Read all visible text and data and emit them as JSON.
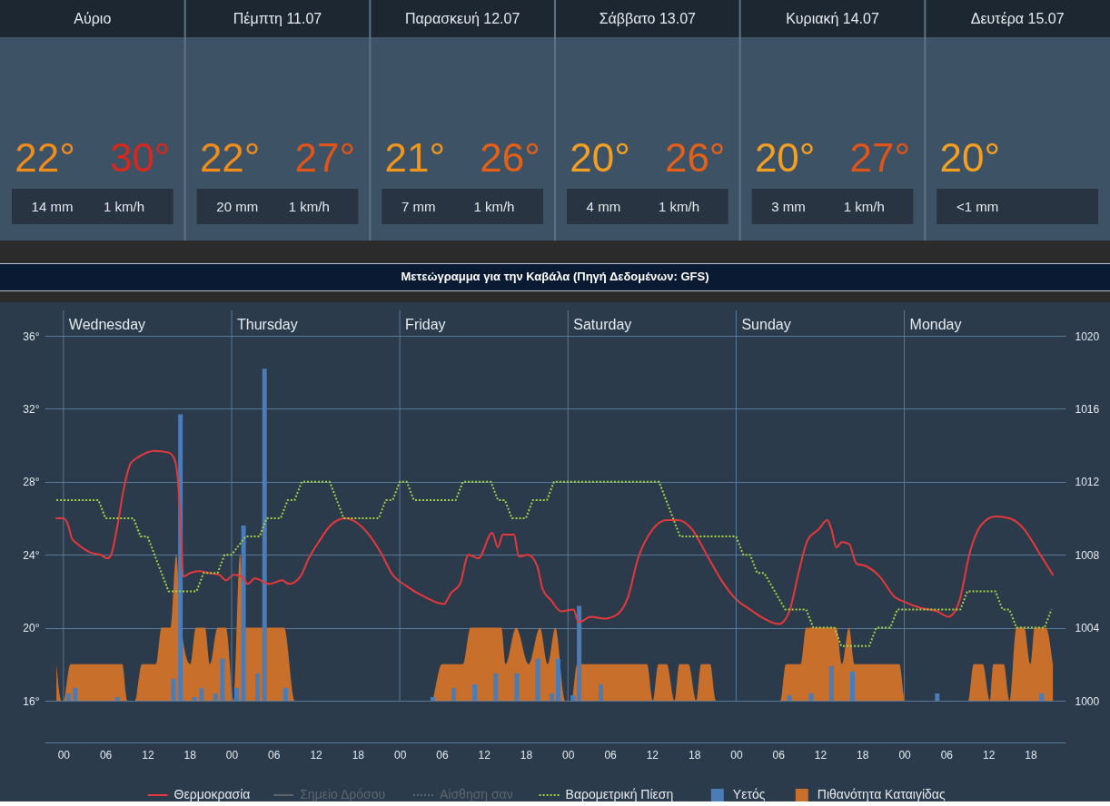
{
  "chart_data": [
    {
      "type": "other",
      "categories": [
        "Αύριο",
        "Πέμπτη 11.07",
        "Παρασκευή 12.07",
        "Σάββατο 13.07",
        "Κυριακή 14.07",
        "Δευτέρα 15.07"
      ],
      "series": [
        {
          "values": [
            22,
            22,
            21,
            20,
            20,
            20
          ],
          "value_labels": [
            "22°",
            "22°",
            "21°",
            "20°",
            "20°",
            "20°"
          ]
        },
        {
          "values": [
            30,
            27,
            26,
            26,
            27,
            null
          ],
          "value_labels": [
            "30°",
            "27°",
            "26°",
            "26°",
            "27°",
            null
          ]
        },
        {
          "values": [
            14,
            20,
            7,
            4,
            3,
            null
          ],
          "value_labels": [
            "14 mm",
            "20 mm",
            "7 mm",
            "4 mm",
            "3 mm",
            "<1 mm"
          ]
        },
        {
          "values": [
            1,
            1,
            1,
            1,
            1,
            null
          ],
          "value_labels": [
            "1 km/h",
            "1 km/h",
            "1 km/h",
            "1 km/h",
            "1 km/h",
            null
          ]
        }
      ]
    },
    {
      "type": "line",
      "title": "Μετεώγραμμα για την Καβάλα (Πηγή Δεδομένων: GFS)",
      "xlim": [
        -2.7,
        143
      ],
      "xticks": [
        {
          "value": 0,
          "label": "00"
        },
        {
          "value": 6,
          "label": "06"
        },
        {
          "value": 12,
          "label": "12"
        },
        {
          "value": 18,
          "label": "18"
        },
        {
          "value": 24,
          "label": "00"
        },
        {
          "value": 30,
          "label": "06"
        },
        {
          "value": 36,
          "label": "12"
        },
        {
          "value": 42,
          "label": "18"
        },
        {
          "value": 48,
          "label": "00"
        },
        {
          "value": 54,
          "label": "06"
        },
        {
          "value": 60,
          "label": "12"
        },
        {
          "value": 66,
          "label": "18"
        },
        {
          "value": 72,
          "label": "00"
        },
        {
          "value": 78,
          "label": "06"
        },
        {
          "value": 84,
          "label": "12"
        },
        {
          "value": 90,
          "label": "18"
        },
        {
          "value": 96,
          "label": "00"
        },
        {
          "value": 102,
          "label": "06"
        },
        {
          "value": 108,
          "label": "12"
        },
        {
          "value": 114,
          "label": "18"
        },
        {
          "value": 120,
          "label": "00"
        },
        {
          "value": 126,
          "label": "06"
        },
        {
          "value": 132,
          "label": "12"
        },
        {
          "value": 138,
          "label": "18"
        }
      ],
      "ylim": [
        16,
        36
      ],
      "yticks": [
        {
          "value": 16,
          "label": "16°"
        },
        {
          "value": 20,
          "label": "20°"
        },
        {
          "value": 24,
          "label": "24°"
        },
        {
          "value": 28,
          "label": "28°"
        },
        {
          "value": 32,
          "label": "32°"
        },
        {
          "value": 36,
          "label": "36°"
        }
      ],
      "y2lim": [
        1000,
        1020
      ],
      "y2ticks": [
        1000,
        1004,
        1008,
        1012,
        1016,
        1020
      ],
      "grid": "y",
      "legend": "bottom",
      "ref_lines": [
        {
          "axis": "x",
          "value": 0,
          "label": "Wednesday"
        },
        {
          "axis": "x",
          "value": 24,
          "label": "Thursday"
        },
        {
          "axis": "x",
          "value": 48,
          "label": "Friday"
        },
        {
          "axis": "x",
          "value": 72,
          "label": "Saturday"
        },
        {
          "axis": "x",
          "value": 96,
          "label": "Sunday"
        },
        {
          "axis": "x",
          "value": 120,
          "label": "Monday"
        }
      ],
      "series": [
        {
          "name": "Θερμοκρασία",
          "type": "line",
          "color": "#e5383b",
          "x": [
            -1,
            0,
            0.7,
            1.2,
            2,
            3,
            4,
            5.3,
            6.3,
            6.8,
            7.8,
            8.6,
            9.6,
            10.9,
            13,
            15,
            15.8,
            16.3,
            16.7,
            17.1,
            18.1,
            19.4,
            20.7,
            22.2,
            23.2,
            24.3,
            25.5,
            26.3,
            27.3,
            29.4,
            31.2,
            32.2,
            33.8,
            35,
            36.6,
            38.1,
            40.2,
            41.7,
            43.8,
            45.6,
            46.8,
            48.9,
            51.5,
            54.3,
            55.3,
            56.6,
            57.8,
            59.2,
            61.2,
            62,
            62.7,
            64.3,
            65,
            66.3,
            67.6,
            68.4,
            69.6,
            71,
            72.8,
            73.5,
            75.3,
            77.1,
            78.9,
            80.5,
            82,
            84.1,
            86.1,
            87.7,
            89.7,
            91.8,
            93.9,
            95.9,
            98,
            100,
            102.1,
            103.6,
            104.9,
            106.2,
            107.8,
            109,
            109.6,
            110.3,
            111.1,
            112.1,
            113.2,
            114.4,
            116.5,
            118.6,
            120.1,
            122.2,
            124.7,
            126.3,
            127.8,
            129.4,
            130.9,
            133,
            135,
            137.1,
            139.1,
            141.2
          ],
          "values": [
            26.0,
            26.0,
            25.6,
            24.9,
            24.6,
            24.3,
            24.1,
            24.0,
            23.8,
            24.0,
            25.8,
            27.6,
            29.0,
            29.4,
            29.7,
            29.6,
            29.3,
            28.2,
            25.8,
            22.8,
            23.0,
            23.1,
            23.0,
            22.9,
            22.6,
            22.9,
            22.8,
            22.4,
            22.7,
            22.4,
            22.6,
            22.4,
            22.8,
            23.8,
            24.8,
            25.6,
            26.0,
            25.8,
            25.0,
            23.9,
            23.0,
            22.3,
            21.7,
            21.3,
            21.9,
            22.4,
            24.0,
            23.8,
            25.2,
            24.4,
            25.1,
            25.1,
            23.9,
            24.0,
            23.4,
            22.1,
            21.5,
            20.9,
            21.0,
            20.3,
            20.6,
            20.5,
            20.7,
            21.6,
            23.8,
            25.4,
            25.9,
            25.9,
            25.4,
            24.0,
            22.6,
            21.6,
            21.0,
            20.5,
            20.2,
            20.9,
            23.0,
            24.8,
            25.4,
            25.9,
            25.4,
            24.4,
            24.7,
            24.6,
            23.5,
            23.4,
            22.8,
            21.7,
            21.4,
            21.1,
            20.9,
            20.6,
            21.4,
            24.2,
            25.6,
            26.1,
            26.0,
            25.4,
            24.2,
            22.9
          ]
        },
        {
          "name": "Σημείο Δρόσου",
          "type": "line",
          "color": "#59636e"
        },
        {
          "name": "Αίσθηση σαν",
          "type": "line",
          "color": "#59636e",
          "line_style": "dotted"
        },
        {
          "name": "Βαρομετρική Πίεση",
          "type": "line",
          "axis": "y2",
          "color": "#a3d147",
          "line_style": "dotted",
          "x": [
            -1,
            5,
            6,
            10,
            11,
            12,
            15,
            19,
            20,
            22,
            23,
            24,
            26,
            28,
            29,
            31,
            32,
            33,
            34,
            38,
            40,
            45,
            46,
            47,
            48,
            49,
            50,
            56,
            57,
            61,
            62,
            63,
            64,
            66,
            67,
            69,
            70,
            85,
            88,
            96,
            97,
            98,
            99,
            100,
            103,
            106,
            107,
            110,
            111,
            115,
            116,
            118,
            119,
            128,
            129,
            133,
            134,
            135,
            136,
            140,
            141
          ],
          "values": [
            1011,
            1011,
            1010,
            1010,
            1009,
            1009,
            1006,
            1006,
            1007,
            1007,
            1008,
            1008,
            1009,
            1009,
            1010,
            1010,
            1011,
            1011,
            1012,
            1012,
            1010,
            1010,
            1011,
            1011,
            1012,
            1012,
            1011,
            1011,
            1012,
            1012,
            1011,
            1011,
            1010,
            1010,
            1011,
            1011,
            1012,
            1012,
            1009,
            1009,
            1008,
            1008,
            1007,
            1007,
            1005,
            1005,
            1004,
            1004,
            1003,
            1003,
            1004,
            1004,
            1005,
            1005,
            1006,
            1006,
            1005,
            1005,
            1004,
            1004,
            1005
          ]
        },
        {
          "name": "Υετός",
          "type": "bar",
          "color": "#4a7cb8",
          "x": [
            0.7,
            1.7,
            7.7,
            15.7,
            16.7,
            18.7,
            19.7,
            21.7,
            22.7,
            24.7,
            25.7,
            27.7,
            28.7,
            31.7,
            52.7,
            55.7,
            58.7,
            61.7,
            64.7,
            67.7,
            69.7,
            70.6,
            72.7,
            73.6,
            76.7,
            103.6,
            106.7,
            109.6,
            112.6,
            124.7,
            139.6
          ],
          "values": [
            16.4,
            16.7,
            16.2,
            17.2,
            31.7,
            16.2,
            16.7,
            16.4,
            18.3,
            16.7,
            25.6,
            17.5,
            34.2,
            16.7,
            16.2,
            16.7,
            16.9,
            17.5,
            17.5,
            18.3,
            16.4,
            18.3,
            16.3,
            21.2,
            16.9,
            16.3,
            16.4,
            17.9,
            17.6,
            16.4,
            16.4
          ]
        },
        {
          "name": "Πιθανότητα Καταιγίδας",
          "type": "area",
          "color": "#c96f2c",
          "x": [
            -1,
            -0.3,
            0,
            1,
            8.4,
            9.1,
            10.2,
            11.2,
            13.2,
            14,
            15.3,
            16.1,
            16.8,
            18.1,
            18.9,
            20.2,
            20.9,
            22,
            23.2,
            24.3,
            25.2,
            25.8,
            31.5,
            33,
            52.5,
            54,
            57,
            58.1,
            62.5,
            63.1,
            64.6,
            66.4,
            68,
            69.1,
            70.2,
            71.6,
            72.5,
            73.3,
            83.3,
            84.1,
            84.9,
            86.1,
            87.2,
            87.9,
            89.2,
            90.3,
            91,
            92.3,
            93.1,
            102.3,
            103.1,
            105.2,
            106,
            110.3,
            111.1,
            112.1,
            112.9,
            119.3,
            120.1,
            129.1,
            129.9,
            131.2,
            132.2,
            132.7,
            134.2,
            135,
            136,
            137.1,
            138,
            138.6,
            140.2,
            141.2
          ],
          "values": [
            18,
            16,
            16,
            18,
            18,
            16,
            16,
            18,
            18,
            20,
            20,
            24,
            20,
            18,
            20,
            20,
            18,
            20,
            20,
            16,
            24,
            20,
            20,
            16,
            16,
            18,
            18,
            20,
            20,
            18,
            20,
            18,
            20,
            18,
            20,
            16,
            16,
            18,
            18,
            16,
            18,
            18,
            16,
            18,
            18,
            16,
            18,
            18,
            16,
            16,
            18,
            18,
            20,
            20,
            18,
            20,
            18,
            18,
            16,
            16,
            18,
            18,
            16,
            18,
            18,
            16,
            20,
            20,
            18,
            20,
            20,
            18
          ]
        }
      ]
    }
  ]
}
